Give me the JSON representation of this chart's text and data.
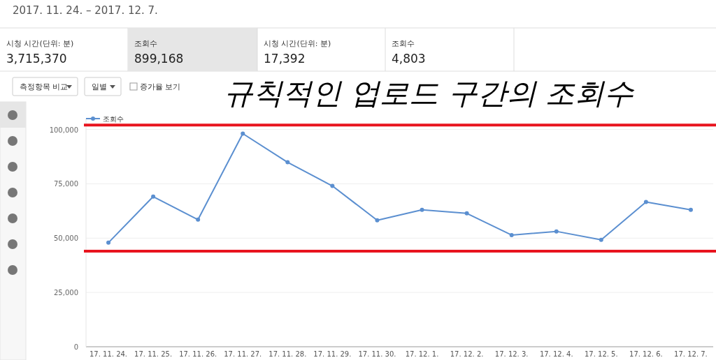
{
  "chart_data": {
    "type": "line",
    "title": "규칙적인 업로드 구간의 조회수",
    "subtitle": "2017. 11. 24. – 2017. 12. 7.",
    "annotations": [
      "시청 시간(단위: 분)",
      "3,715,370",
      "조회수",
      "899,168",
      "시청 시간(단위: 분)",
      "17,392",
      "조회수",
      "4,803",
      "측정항목 비교",
      "일별",
      "증가율 보기"
    ],
    "categories": [
      "17. 11. 24.",
      "17. 11. 25.",
      "17. 11. 26.",
      "17. 11. 27.",
      "17. 11. 28.",
      "17. 11. 29.",
      "17. 11. 30.",
      "17. 12. 1.",
      "17. 12. 2.",
      "17. 12. 3.",
      "17. 12. 4.",
      "17. 12. 5.",
      "17. 12. 6.",
      "17. 12. 7."
    ],
    "series": [
      {
        "name": "조회수",
        "color": "#5b8fd0",
        "values": [
          47900,
          69100,
          58500,
          98100,
          84900,
          74000,
          58200,
          63000,
          61400,
          51400,
          53100,
          49200,
          66600,
          63000
        ]
      }
    ],
    "ylim": [
      0,
      105000
    ],
    "yticks": [
      0,
      {
        "value": 25000,
        "label": "25,000"
      },
      {
        "value": 50000,
        "label": "50,000"
      },
      {
        "value": 75000,
        "label": "75,000"
      },
      {
        "value": 100000,
        "label": "100,000"
      }
    ],
    "ref_lines": [
      {
        "axis": "y",
        "value": 102000,
        "color": "#e8141e"
      },
      {
        "axis": "y",
        "value": 44000,
        "color": "#e8141e"
      }
    ],
    "grid": "y",
    "legend": "top left",
    "marker": "circle",
    "line_style": "solid"
  }
}
